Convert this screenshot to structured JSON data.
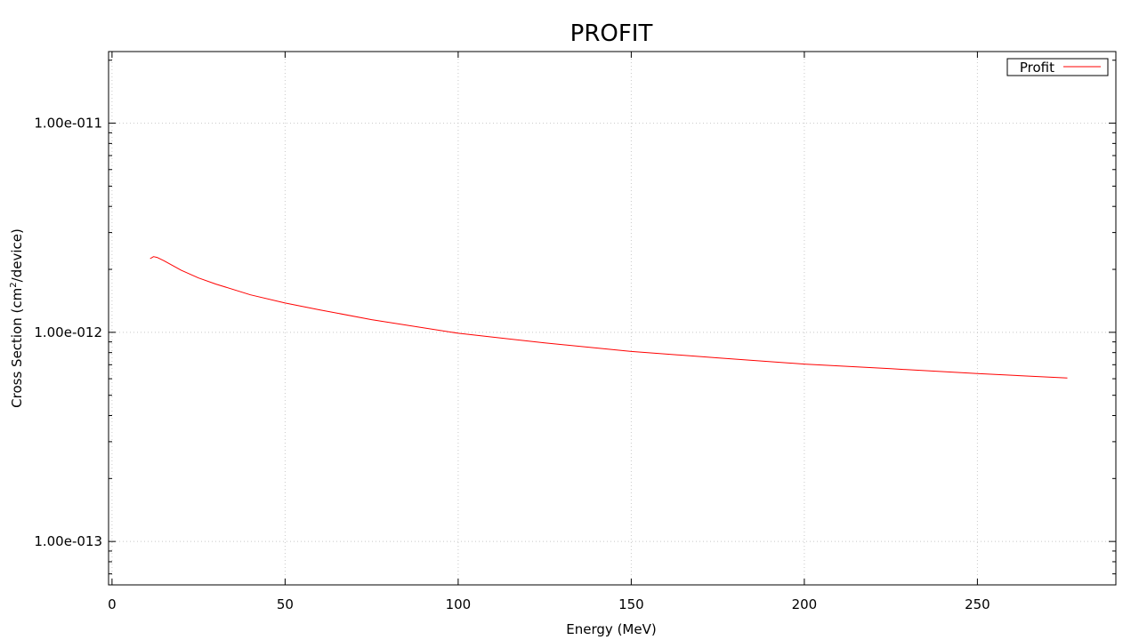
{
  "chart_data": {
    "type": "line",
    "title": "PROFIT",
    "xlabel": "Energy (MeV)",
    "ylabel": {
      "before": "Cross Section (cm",
      "sup": "2",
      "after": "/device)"
    },
    "xlim": [
      -1,
      290
    ],
    "ylim": [
      6.2e-14,
      2.2e-11
    ],
    "yscale": "log",
    "grid": true,
    "legend_position": "top-right",
    "x_ticks": [
      0,
      50,
      100,
      150,
      200,
      250
    ],
    "x_tick_labels": [
      "0",
      "50",
      "100",
      "150",
      "200",
      "250"
    ],
    "y_ticks": [
      1e-13,
      1e-12,
      1e-11
    ],
    "y_tick_labels": [
      "1.00e-013",
      "1.00e-012",
      "1.00e-011"
    ],
    "series": [
      {
        "name": "Profit",
        "color": "#ff0000",
        "x": [
          11,
          12,
          13,
          15,
          20,
          25,
          30,
          40,
          50,
          60,
          75,
          100,
          125,
          150,
          175,
          200,
          225,
          250,
          276
        ],
        "y": [
          2.25e-12,
          2.3e-12,
          2.28e-12,
          2.2e-12,
          1.98e-12,
          1.82e-12,
          1.7e-12,
          1.51e-12,
          1.38e-12,
          1.28e-12,
          1.15e-12,
          9.9e-13,
          8.9e-13,
          8.1e-13,
          7.55e-13,
          7.05e-13,
          6.7e-13,
          6.35e-13,
          6.05e-13
        ]
      }
    ]
  }
}
